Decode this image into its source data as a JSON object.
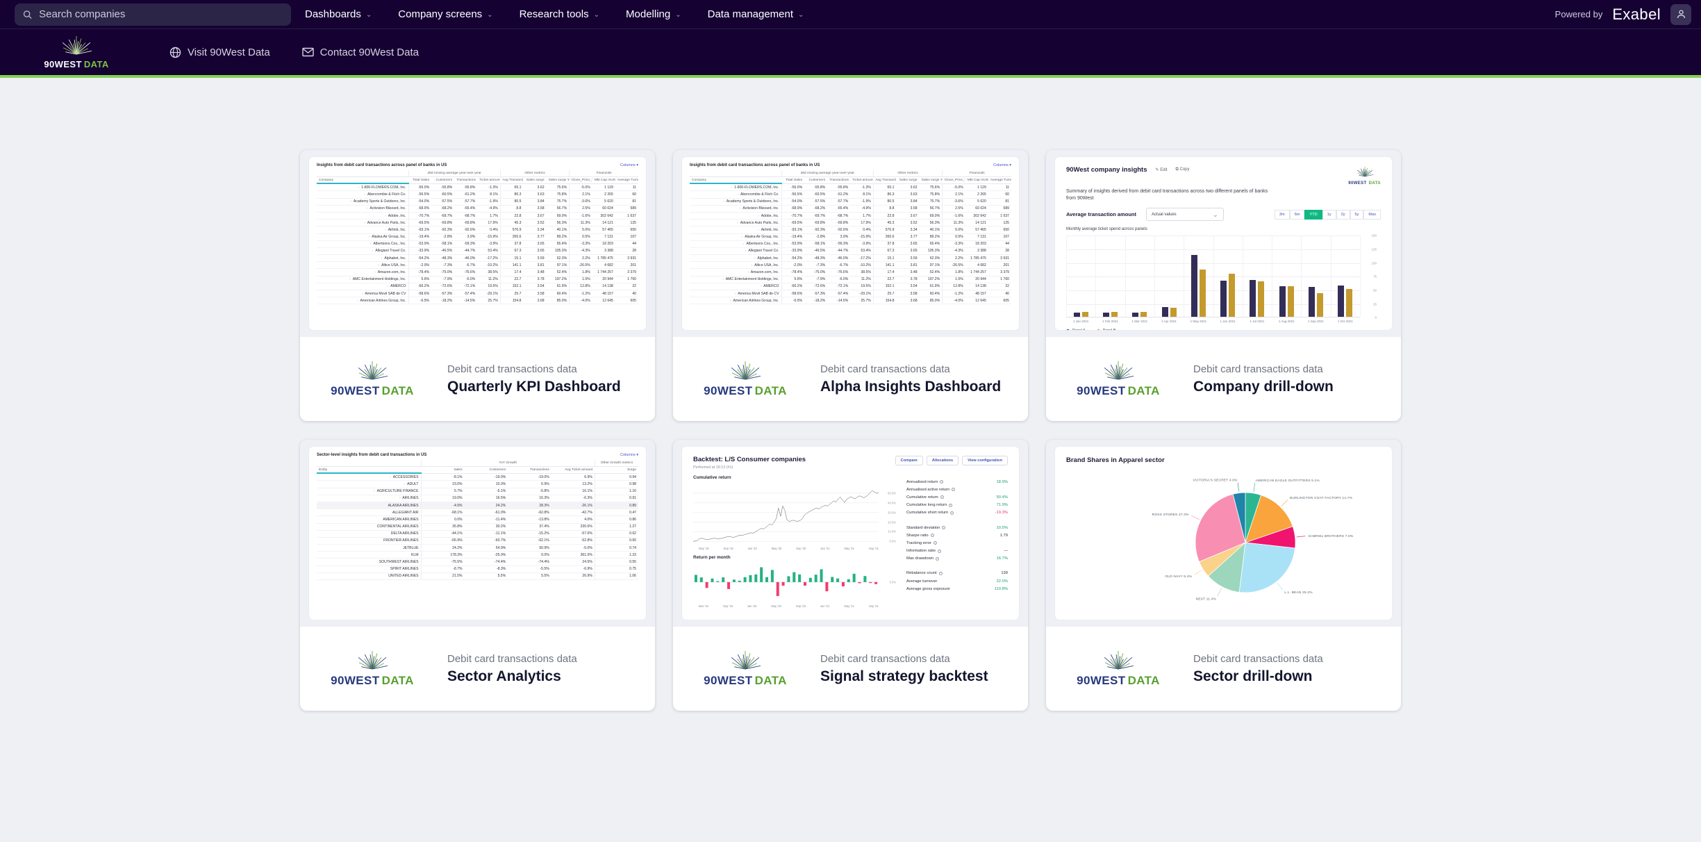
{
  "topbar": {
    "search_placeholder": "Search companies",
    "menu": [
      "Dashboards",
      "Company screens",
      "Research tools",
      "Modelling",
      "Data management"
    ],
    "powered_by": "Powered by",
    "brand": "Exabel"
  },
  "brandbar": {
    "logo_name": "90WEST",
    "logo_suffix": "DATA",
    "links": [
      {
        "label": "Visit 90West Data",
        "icon": "globe"
      },
      {
        "label": "Contact 90West Data",
        "icon": "mail"
      }
    ]
  },
  "cards": [
    {
      "category": "Debit card transactions data",
      "title": "Quarterly KPI Dashboard"
    },
    {
      "category": "Debit card transactions data",
      "title": "Alpha Insights Dashboard"
    },
    {
      "category": "Debit card transactions data",
      "title": "Company drill-down"
    },
    {
      "category": "Debit card transactions data",
      "title": "Sector Analytics"
    },
    {
      "category": "Debit card transactions data",
      "title": "Signal strategy backtest"
    },
    {
      "category": "Debit card transactions data",
      "title": "Sector drill-down"
    }
  ],
  "company_table": {
    "title": "Insights from debit card transactions across panel of banks in US",
    "columns_label": "Columns",
    "first_col": "Company",
    "groups": [
      {
        "label": "28d moving average year-over-year",
        "span": 4
      },
      {
        "label": "Other metrics",
        "span": 3
      },
      {
        "label": "Financials",
        "span": 3
      }
    ],
    "headers": [
      "Total Sales",
      "Customers",
      "Transactions",
      "Ticket amount",
      "Avg Transaction Amount",
      "Sales surge",
      "Sales surge YoY",
      "Close_Price_TR 1m",
      "Mkt Cap mUSD",
      "Average Turnover mUSD"
    ],
    "col_types": [
      "pct",
      "pct",
      "pct",
      "pct",
      "num",
      "num",
      "pct",
      "pct",
      "num",
      "num"
    ],
    "rows": [
      {
        "name": "1-800-FLOWERS.COM, Inc.",
        "cells": [
          "-56.0%",
          "-55.8%",
          "-55.8%",
          "-1.3%",
          "65.1",
          "3.62",
          "75.6%",
          "-5.0%",
          "1 129",
          "11"
        ]
      },
      {
        "name": "Abercrombie & Fitch Co.",
        "cells": [
          "-56.5%",
          "-60.5%",
          "-61.2%",
          "8.1%",
          "86.3",
          "3.63",
          "75.8%",
          "2.1%",
          "2 265",
          "60"
        ]
      },
      {
        "name": "Academy Sports & Outdoors, Inc.",
        "cells": [
          "-54.0%",
          "-57.5%",
          "-57.7%",
          "-1.9%",
          "80.5",
          "3.84",
          "75.7%",
          "-3.6%",
          "5 620",
          "81"
        ]
      },
      {
        "name": "Activision Blizzard, Inc.",
        "cells": [
          "-68.9%",
          "-68.2%",
          "-65.4%",
          "-4.9%",
          "8.8",
          "3.58",
          "56.7%",
          "2.5%",
          "60 024",
          "589"
        ]
      },
      {
        "name": "Adobe, Inc.",
        "cells": [
          "-70.7%",
          "-69.7%",
          "-68.7%",
          "1.7%",
          "22.8",
          "3.67",
          "69.0%",
          "-1.6%",
          "302 642",
          "1 637"
        ]
      },
      {
        "name": "Advance Auto Parts, Inc.",
        "cells": [
          "-69.5%",
          "-69.8%",
          "-69.8%",
          "17.9%",
          "45.3",
          "3.52",
          "56.3%",
          "11.3%",
          "14 121",
          "125"
        ]
      },
      {
        "name": "Airbnb, Inc.",
        "cells": [
          "-93.1%",
          "-92.3%",
          "-92.6%",
          "0.4%",
          "576.9",
          "3.34",
          "40.1%",
          "5.0%",
          "57 465",
          "650"
        ]
      },
      {
        "name": "Alaska Air Group, Inc.",
        "cells": [
          "-19.4%",
          "-2.8%",
          "3.9%",
          "-15.9%",
          "265.6",
          "3.77",
          "89.2%",
          "0.5%",
          "7 131",
          "107"
        ]
      },
      {
        "name": "Albertsons Cos., Inc.",
        "cells": [
          "-53.9%",
          "-58.1%",
          "-59.3%",
          "-3.9%",
          "37.8",
          "3.65",
          "65.4%",
          "-3.3%",
          "18 203",
          "44"
        ]
      },
      {
        "name": "Allegiant Travel Co.",
        "cells": [
          "-33.9%",
          "-46.5%",
          "-44.7%",
          "53.4%",
          "67.3",
          "3.65",
          "105.3%",
          "-4.3%",
          "3 388",
          "28"
        ]
      },
      {
        "name": "Alphabet, Inc.",
        "cells": [
          "-54.2%",
          "-48.3%",
          "-46.0%",
          "-17.2%",
          "15.1",
          "3.59",
          "62.3%",
          "2.2%",
          "1 785 475",
          "3 931"
        ]
      },
      {
        "name": "Altice USA, Inc.",
        "cells": [
          "-2.0%",
          "-7.3%",
          "-6.7%",
          "-10.2%",
          "141.1",
          "3.81",
          "97.1%",
          "-26.5%",
          "4 682",
          "201"
        ]
      },
      {
        "name": "Amazon.com, Inc.",
        "cells": [
          "-78.4%",
          "-75.0%",
          "-76.6%",
          "38.5%",
          "17.4",
          "3.48",
          "52.4%",
          "1.8%",
          "1 744 257",
          "3 379"
        ]
      },
      {
        "name": "AMC Entertainment Holdings, Inc.",
        "cells": [
          "5.6%",
          "-7.9%",
          "-6.0%",
          "11.2%",
          "22.7",
          "3.78",
          "197.2%",
          "1.5%",
          "20 944",
          "1 760"
        ]
      },
      {
        "name": "AMERCO",
        "cells": [
          "-66.2%",
          "-72.6%",
          "-72.1%",
          "19.5%",
          "152.1",
          "3.54",
          "61.9%",
          "12.8%",
          "14 138",
          "22"
        ]
      },
      {
        "name": "America Movil SAB de CV",
        "cells": [
          "-58.6%",
          "-57.3%",
          "-57.4%",
          "-29.1%",
          "25.7",
          "3.58",
          "60.4%",
          "-1.2%",
          "48 157",
          "40"
        ]
      },
      {
        "name": "American Airlines Group, Inc.",
        "cells": [
          "-6.5%",
          "-18.2%",
          "-14.5%",
          "25.7%",
          "154.8",
          "3.68",
          "85.0%",
          "-4.0%",
          "12 645",
          "605"
        ]
      }
    ]
  },
  "sector_table": {
    "title": "Sector-level insights from debit card transactions in US",
    "columns_label": "Columns",
    "first_col": "Entity",
    "groups": [
      {
        "label": "YoY Growth",
        "span": 4
      },
      {
        "label": "Other Growth metrics",
        "span": 1
      }
    ],
    "headers": [
      "Sales",
      "Customers",
      "Transactions",
      "Avg Ticket amount",
      "Surge"
    ],
    "col_types": [
      "pct",
      "pct",
      "pct",
      "pct",
      "num"
    ],
    "rows": [
      {
        "name": "ACCESSORIES",
        "level": 0,
        "expanded": false,
        "cells": [
          "-8.1%",
          "-19.0%",
          "-19.0%",
          "6.9%",
          "0.94"
        ]
      },
      {
        "name": "ADULT",
        "level": 0,
        "expanded": false,
        "cells": [
          "23.0%",
          "10.3%",
          "6.9%",
          "13.2%",
          "0.98"
        ]
      },
      {
        "name": "AGRICULTURE FINANCE",
        "level": 0,
        "expanded": false,
        "cells": [
          "5.7%",
          "-5.1%",
          "-5.8%",
          "16.1%",
          "1.16"
        ]
      },
      {
        "name": "AIRLINES",
        "level": 0,
        "expanded": true,
        "cells": [
          "19.0%",
          "16.5%",
          "16.3%",
          "-6.3%",
          "0.91"
        ]
      },
      {
        "name": "ALASKA AIRLINES",
        "level": 1,
        "selected": true,
        "cells": [
          "-4.5%",
          "24.2%",
          "28.3%",
          "-26.1%",
          "0.89"
        ]
      },
      {
        "name": "ALLEGIANT AIR",
        "level": 1,
        "cells": [
          "-68.1%",
          "-61.0%",
          "-62.8%",
          "-42.7%",
          "0.47"
        ]
      },
      {
        "name": "AMERICAN AIRLINES",
        "level": 1,
        "cells": [
          "0.0%",
          "-11.4%",
          "-13.8%",
          "4.0%",
          "0.86"
        ]
      },
      {
        "name": "CONTINENTAL AIRLINES",
        "level": 1,
        "cells": [
          "35.8%",
          "30.2%",
          "37.4%",
          "230.6%",
          "1.27"
        ]
      },
      {
        "name": "DELTA AIRLINES",
        "level": 1,
        "cells": [
          "-44.1%",
          "-11.1%",
          "-15.2%",
          "-57.6%",
          "0.62"
        ]
      },
      {
        "name": "FRONTIER AIRLINES",
        "level": 1,
        "cells": [
          "-65.9%",
          "-60.7%",
          "-62.1%",
          "-52.8%",
          "0.65"
        ]
      },
      {
        "name": "JETBLUE",
        "level": 1,
        "cells": [
          "24.2%",
          "54.9%",
          "50.9%",
          "-5.0%",
          "0.74"
        ]
      },
      {
        "name": "KLM",
        "level": 1,
        "cells": [
          "178.3%",
          "-25.0%",
          "0.0%",
          "361.0%",
          "1.23"
        ]
      },
      {
        "name": "SOUTHWEST AIRLINES",
        "level": 1,
        "cells": [
          "-75.5%",
          "-74.4%",
          "-74.4%",
          "24.5%",
          "0.55"
        ]
      },
      {
        "name": "SPIRIT AIRLINES",
        "level": 1,
        "cells": [
          "-8.7%",
          "-8.3%",
          "-5.5%",
          "-6.9%",
          "0.75"
        ]
      },
      {
        "name": "UNITED AIRLINES",
        "level": 1,
        "cells": [
          "21.5%",
          "5.5%",
          "5.5%",
          "26.9%",
          "1.06"
        ]
      }
    ]
  },
  "company_insights": {
    "title": "90West company insights",
    "edit_label": "Edit",
    "copy_label": "Copy",
    "subtitle": "Summary of insights derived from debit card transactions across two different panels of banks from 90West",
    "metric_label": "Average transaction amount",
    "dropdown_value": "Actual values",
    "ranges": [
      "3m",
      "6m",
      "YTD",
      "1y",
      "2y",
      "5y",
      "Max"
    ],
    "selected_range": "YTD",
    "chart_title": "Monthly average ticket spend across panels",
    "chart_data": {
      "type": "bar",
      "categories": [
        "1 Jan 2021",
        "1 Feb 2021",
        "1 Mar 2021",
        "1 Apr 2021",
        "1 May 2021",
        "1 Jun 2021",
        "1 Jul 2021",
        "1 Aug 2021",
        "1 Sep 2021",
        "1 Oct 2021"
      ],
      "series": [
        {
          "name": "Panel A",
          "color": "#332e57",
          "values": [
            8,
            8,
            8,
            18,
            113,
            66,
            68,
            56,
            55,
            57
          ]
        },
        {
          "name": "Panel B",
          "color": "#c49a2d",
          "values": [
            9,
            9,
            9,
            17,
            87,
            79,
            65,
            56,
            44,
            51
          ]
        }
      ],
      "ylim": [
        0,
        150
      ],
      "yticks": [
        0,
        25,
        50,
        75,
        100,
        125,
        150
      ]
    }
  },
  "backtest": {
    "title": "Backtest: L/S Consumer companies",
    "subtitle": "Performed at 19:13 (#1)",
    "buttons": [
      "Compare",
      "Allocations",
      "View configuration"
    ],
    "cumulative_label": "Cumulative return",
    "monthly_label": "Return per month",
    "cum_chart": {
      "type": "line",
      "x_labels": [
        "May '19",
        "Sep '19",
        "Jan '20",
        "May '20",
        "Sep '20",
        "Jan '21",
        "May '21",
        "Sep '21"
      ],
      "y_ticks": [
        50,
        40,
        30,
        20,
        10,
        0
      ],
      "values": [
        0,
        0.6,
        1.2,
        2.8,
        3.4,
        2.6,
        2.2,
        1.8,
        2.4,
        3,
        3.4,
        2.8,
        2.5,
        3.1,
        3.6,
        4.2,
        4.8,
        5.2,
        4.6,
        4.2,
        5,
        5.8,
        6.6,
        6.2,
        7,
        7.6,
        8.4,
        9,
        8.4,
        9.6,
        11,
        12.4,
        13.6,
        12.8,
        14.4,
        16.2,
        18,
        17.2,
        20,
        24,
        34.6,
        26,
        36.8,
        32,
        22.4,
        20.6,
        21.4,
        22,
        21.2,
        20.8,
        21.6,
        23,
        26.8,
        28.6,
        30.2,
        31.4,
        32.6,
        33.8,
        34.6,
        33.6,
        35.2,
        36.4,
        37.6,
        36.6,
        38.4,
        40.2,
        42,
        41,
        43.8,
        46,
        43,
        40.4,
        43.6,
        45,
        46.2,
        45,
        44.2,
        46,
        47.2,
        46.4,
        45.2,
        46.4,
        48.2,
        50.4,
        52.6,
        51.2,
        50,
        50.4
      ]
    },
    "monthly_chart": {
      "type": "bar",
      "x_labels": [
        "Mar '19",
        "Sep '19",
        "Jan '20",
        "May '20",
        "Sep '20",
        "Jan '21",
        "May '21",
        "Sep '21"
      ],
      "zero_label": "0.0%",
      "values": [
        3.2,
        2.1,
        -2.6,
        1.6,
        0.4,
        2.1,
        -3.1,
        1.1,
        0.6,
        2.2,
        3.1,
        3.4,
        6.6,
        2.2,
        5.4,
        -6.2,
        -1.6,
        2.6,
        4.4,
        3.4,
        -1.6,
        1.9,
        3.3,
        5.7,
        -4.1,
        2.3,
        1.6,
        -1.9,
        1.3,
        3.7,
        -0.5,
        2.7,
        -0.4,
        -0.9
      ]
    },
    "stats": [
      {
        "label": "Annualised return",
        "info": true,
        "value": "18.9%",
        "tone": "pos"
      },
      {
        "label": "Annualised active return",
        "info": true,
        "value": "",
        "tone": "plain"
      },
      {
        "label": "Cumulative return",
        "info": true,
        "value": "50.4%",
        "tone": "pos"
      },
      {
        "label": "Cumulative long return",
        "info": true,
        "value": "71.9%",
        "tone": "pos"
      },
      {
        "label": "Cumulative short return",
        "info": true,
        "value": "-19.3%",
        "tone": "neg"
      },
      {
        "label": "Standard deviation",
        "info": true,
        "value": "10.5%",
        "tone": "pos",
        "gap": true
      },
      {
        "label": "Sharpe ratio",
        "info": true,
        "value": "1.79",
        "tone": "plain"
      },
      {
        "label": "Tracking error",
        "info": true,
        "value": "",
        "tone": "plain"
      },
      {
        "label": "Information ratio",
        "info": true,
        "value": "—",
        "tone": "plain"
      },
      {
        "label": "Max drawdown",
        "info": true,
        "value": "16.7%",
        "tone": "pos"
      },
      {
        "label": "Rebalance count",
        "info": true,
        "value": "139",
        "tone": "plain",
        "gap": true
      },
      {
        "label": "Average turnover",
        "info": false,
        "value": "22.0%",
        "tone": "pos"
      },
      {
        "label": "Average gross exposure",
        "info": false,
        "value": "110.8%",
        "tone": "pos"
      }
    ]
  },
  "pie": {
    "title": "Brand Shares in Apparel sector",
    "chart_data": {
      "type": "pie",
      "slices": [
        {
          "label": "AMERICAN EAGLE OUTFITTERS 5.1%",
          "pct": 5.1,
          "color": "#2cb591"
        },
        {
          "label": "BURLINGTON COAT FACTORY 14.7%",
          "pct": 14.7,
          "color": "#f9a43c"
        },
        {
          "label": "GABRIEL BROTHERS 7.0%",
          "pct": 7.0,
          "color": "#f0146e"
        },
        {
          "label": "L.L. BEAN 25.2%",
          "pct": 25.2,
          "color": "#a9e2f7"
        },
        {
          "label": "NEXT 11.4%",
          "pct": 11.4,
          "color": "#9cd7bd"
        },
        {
          "label": "OLD NAVY 5.4%",
          "pct": 5.4,
          "color": "#fbd289"
        },
        {
          "label": "ROSS STORES 27.3%",
          "pct": 27.3,
          "color": "#f98eb3"
        },
        {
          "label": "VICTORIA'S SECRET 4.0%",
          "pct": 4.0,
          "color": "#1f84a8"
        }
      ]
    }
  }
}
